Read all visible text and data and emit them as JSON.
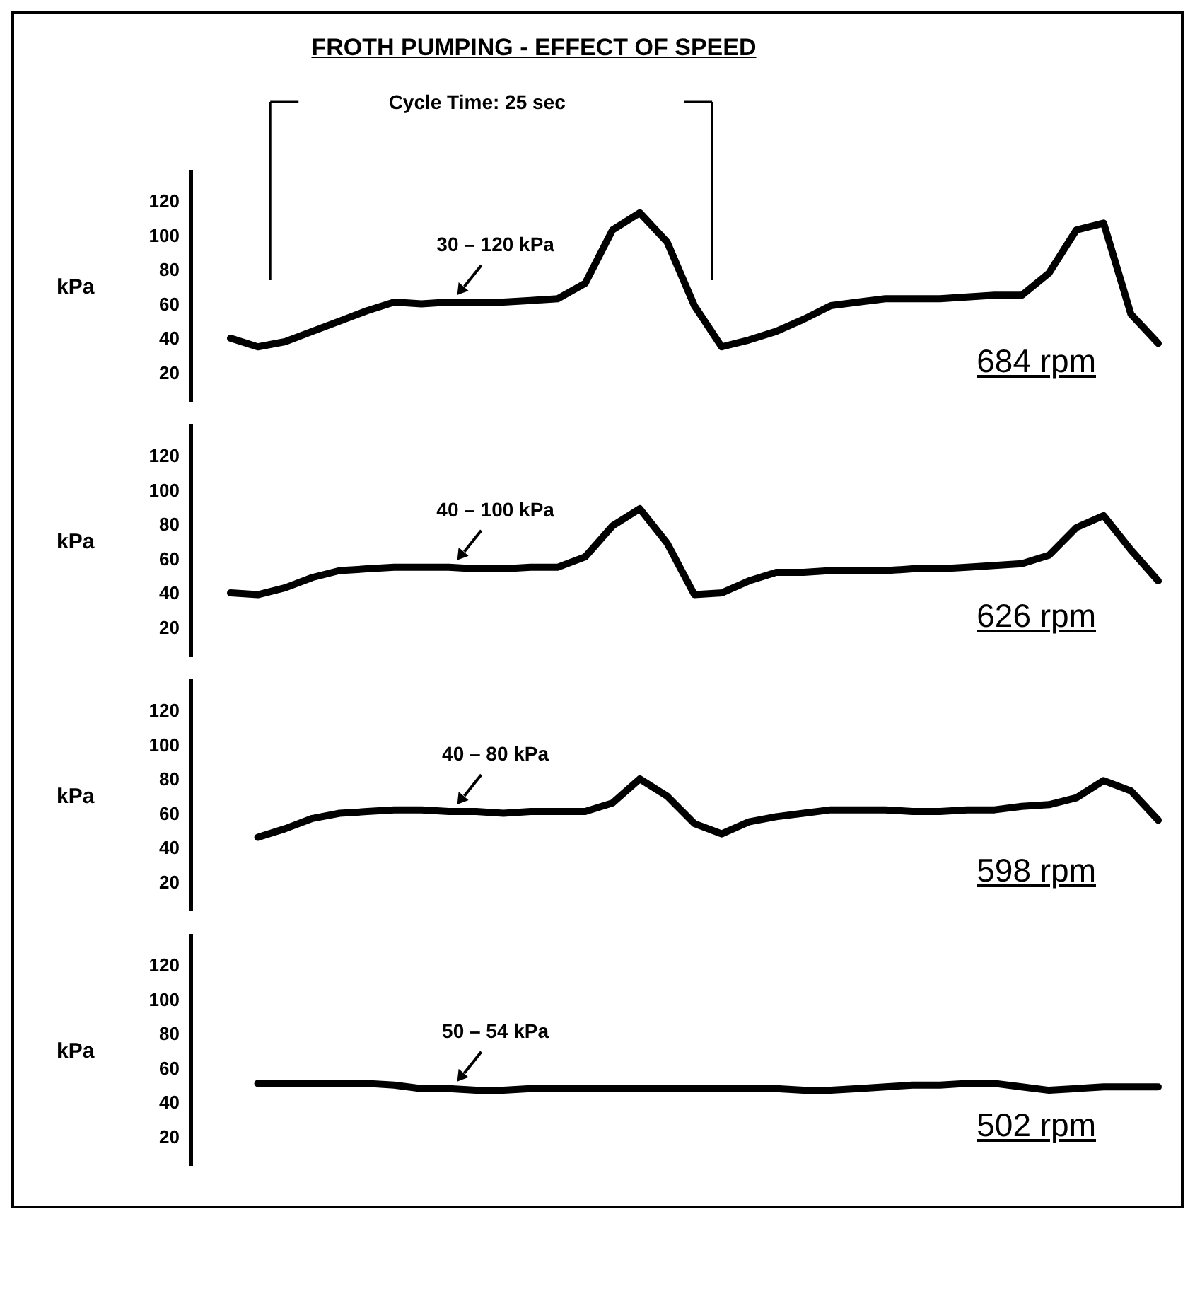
{
  "chart_data": [
    {
      "type": "line",
      "title": "FROTH PUMPING - EFFECT OF SPEED",
      "ylabel": "kPa",
      "ylim": [
        3,
        138
      ],
      "yticks": [
        20,
        40,
        60,
        80,
        100,
        120
      ],
      "tick_labels": "y",
      "marker": "none",
      "annotations": [
        "Cycle Time: 25 sec",
        "30 – 120 kPa"
      ],
      "categories": [
        null,
        null,
        null,
        null,
        null,
        null,
        null,
        null,
        null,
        null,
        null,
        null,
        null,
        null,
        null,
        null,
        null,
        null,
        null,
        null,
        null,
        null,
        null,
        null,
        null,
        null,
        null,
        null,
        null,
        null,
        null,
        null,
        null,
        null,
        null
      ],
      "series": [
        {
          "name": "684 rpm",
          "color": "#000000",
          "values": [
            40,
            35,
            38,
            44,
            50,
            56,
            61,
            60,
            61,
            61,
            61,
            62,
            63,
            72,
            103,
            113,
            96,
            59,
            35,
            39,
            44,
            51,
            59,
            61,
            63,
            63,
            63,
            64,
            65,
            65,
            78,
            103,
            107,
            54,
            37
          ]
        }
      ]
    },
    {
      "type": "line",
      "ylabel": "kPa",
      "ylim": [
        3,
        138
      ],
      "yticks": [
        20,
        40,
        60,
        80,
        100,
        120
      ],
      "tick_labels": "y",
      "marker": "none",
      "annotations": [
        "40 – 100 kPa"
      ],
      "categories": [
        null,
        null,
        null,
        null,
        null,
        null,
        null,
        null,
        null,
        null,
        null,
        null,
        null,
        null,
        null,
        null,
        null,
        null,
        null,
        null,
        null,
        null,
        null,
        null,
        null,
        null,
        null,
        null,
        null,
        null,
        null,
        null,
        null,
        null,
        null
      ],
      "series": [
        {
          "name": "626 rpm",
          "color": "#000000",
          "values": [
            40,
            39,
            43,
            49,
            53,
            54,
            55,
            55,
            55,
            54,
            54,
            55,
            55,
            61,
            79,
            89,
            69,
            39,
            40,
            47,
            52,
            52,
            53,
            53,
            53,
            54,
            54,
            55,
            56,
            57,
            62,
            78,
            85,
            65,
            47
          ]
        }
      ]
    },
    {
      "type": "line",
      "ylabel": "kPa",
      "ylim": [
        3,
        138
      ],
      "yticks": [
        20,
        40,
        60,
        80,
        100,
        120
      ],
      "tick_labels": "y",
      "marker": "none",
      "annotations": [
        "40 – 80 kPa"
      ],
      "categories": [
        null,
        null,
        null,
        null,
        null,
        null,
        null,
        null,
        null,
        null,
        null,
        null,
        null,
        null,
        null,
        null,
        null,
        null,
        null,
        null,
        null,
        null,
        null,
        null,
        null,
        null,
        null,
        null,
        null,
        null,
        null,
        null,
        null,
        null,
        null
      ],
      "series": [
        {
          "name": "598 rpm",
          "color": "#000000",
          "values": [
            null,
            46,
            51,
            57,
            60,
            61,
            62,
            62,
            61,
            61,
            60,
            61,
            61,
            61,
            66,
            80,
            70,
            54,
            48,
            55,
            58,
            60,
            62,
            62,
            62,
            61,
            61,
            62,
            62,
            64,
            65,
            69,
            79,
            73,
            56
          ]
        }
      ]
    },
    {
      "type": "line",
      "ylabel": "kPa",
      "ylim": [
        3,
        138
      ],
      "yticks": [
        20,
        40,
        60,
        80,
        100,
        120
      ],
      "tick_labels": "y",
      "marker": "none",
      "annotations": [
        "50 – 54 kPa"
      ],
      "categories": [
        null,
        null,
        null,
        null,
        null,
        null,
        null,
        null,
        null,
        null,
        null,
        null,
        null,
        null,
        null,
        null,
        null,
        null,
        null,
        null,
        null,
        null,
        null,
        null,
        null,
        null,
        null,
        null,
        null,
        null,
        null,
        null,
        null,
        null,
        null
      ],
      "series": [
        {
          "name": "502 rpm",
          "color": "#000000",
          "values": [
            null,
            51,
            51,
            51,
            51,
            51,
            50,
            48,
            48,
            47,
            47,
            48,
            48,
            48,
            48,
            48,
            48,
            48,
            48,
            48,
            48,
            47,
            47,
            48,
            49,
            50,
            50,
            51,
            51,
            49,
            47,
            48,
            49,
            49,
            49
          ]
        }
      ]
    }
  ]
}
